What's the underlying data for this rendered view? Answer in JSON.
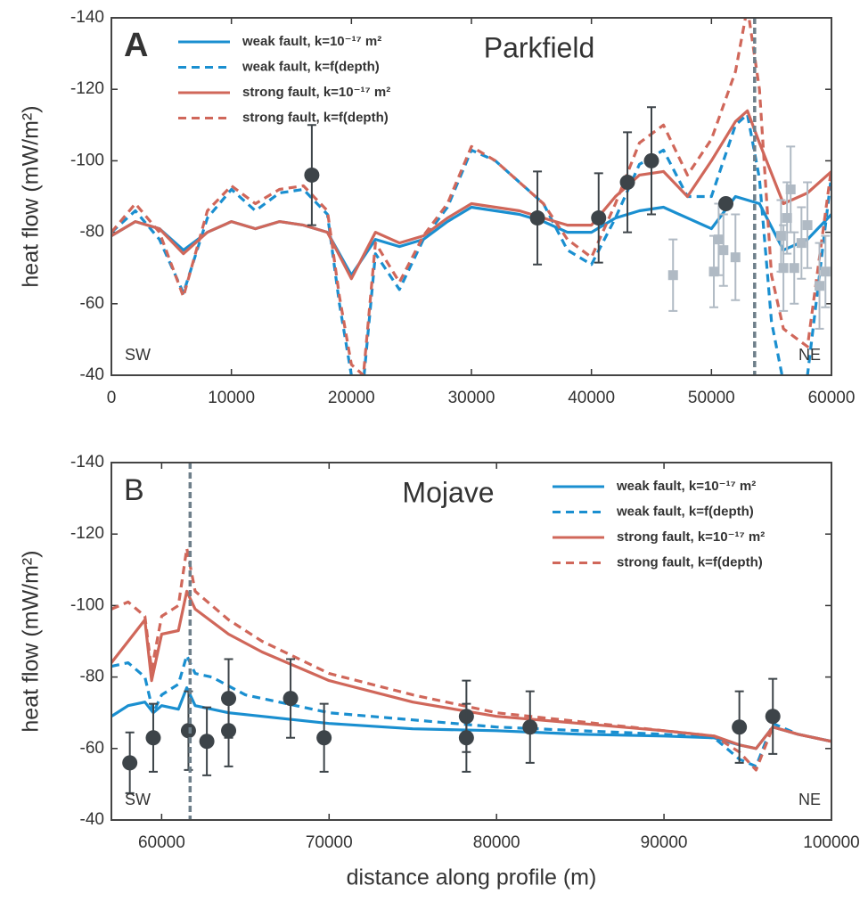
{
  "chart_data": [
    {
      "type": "line",
      "panel_label": "A",
      "title": "Parkfield",
      "ylabel": "heat flow (mW/m²)",
      "annotations": [
        "SW",
        "NE"
      ],
      "legend": "upper left",
      "fault_x": 53600,
      "fault_color": "#6e7f8a",
      "xlim": [
        0,
        60000
      ],
      "xticks": [
        0,
        10000,
        20000,
        30000,
        40000,
        50000,
        60000
      ],
      "ylim": [
        -40,
        -140
      ],
      "yticks": [
        -140,
        -120,
        -100,
        -80,
        -60,
        -40
      ],
      "series": [
        {
          "name": "weak fault, k=10⁻¹⁷ m²",
          "color": "#1a8fd0",
          "dashed": false,
          "x": [
            0,
            2000,
            4000,
            6000,
            8000,
            10000,
            12000,
            14000,
            16000,
            18000,
            20000,
            22000,
            24000,
            26000,
            28000,
            30000,
            32000,
            34000,
            36000,
            38000,
            40000,
            42000,
            44000,
            46000,
            48000,
            50000,
            52000,
            54000,
            56000,
            58000,
            60000
          ],
          "values": [
            -79,
            -83,
            -81,
            -75,
            -80,
            -83,
            -81,
            -83,
            -82,
            -80,
            -68,
            -78,
            -76,
            -78,
            -83,
            -87,
            -86,
            -85,
            -83,
            -80,
            -80,
            -84,
            -86,
            -87,
            -84,
            -81,
            -90,
            -88,
            -75,
            -78,
            -85
          ]
        },
        {
          "name": "weak fault, k=f(depth)",
          "color": "#1a8fd0",
          "dashed": true,
          "x": [
            0,
            2000,
            4000,
            6000,
            8000,
            10000,
            12000,
            14000,
            16000,
            18000,
            19000,
            20000,
            21000,
            22000,
            24000,
            26000,
            28000,
            30000,
            32000,
            34000,
            36000,
            38000,
            40000,
            42000,
            44000,
            46000,
            48000,
            50000,
            52000,
            53000,
            54000,
            55000,
            56000,
            58000,
            60000
          ],
          "values": [
            -80,
            -86,
            -78,
            -63,
            -84,
            -92,
            -86,
            -91,
            -92,
            -85,
            -60,
            -40,
            -38,
            -74,
            -64,
            -78,
            -87,
            -103,
            -100,
            -94,
            -88,
            -75,
            -71,
            -84,
            -99,
            -103,
            -90,
            -90,
            -110,
            -113,
            -95,
            -55,
            -38,
            -40,
            -96
          ]
        },
        {
          "name": "strong fault, k=10⁻¹⁷ m²",
          "color": "#d0675a",
          "dashed": false,
          "x": [
            0,
            2000,
            4000,
            6000,
            8000,
            10000,
            12000,
            14000,
            16000,
            18000,
            20000,
            22000,
            24000,
            26000,
            28000,
            30000,
            32000,
            34000,
            36000,
            38000,
            40000,
            42000,
            44000,
            46000,
            48000,
            50000,
            52000,
            53000,
            54000,
            56000,
            58000,
            60000
          ],
          "values": [
            -79,
            -83,
            -81,
            -74,
            -80,
            -83,
            -81,
            -83,
            -82,
            -80,
            -67,
            -80,
            -77,
            -79,
            -84,
            -88,
            -87,
            -86,
            -84,
            -82,
            -82,
            -90,
            -96,
            -97,
            -90,
            -100,
            -111,
            -114,
            -105,
            -88,
            -91,
            -97
          ]
        },
        {
          "name": "strong fault, k=f(depth)",
          "color": "#d0675a",
          "dashed": true,
          "x": [
            0,
            2000,
            4000,
            6000,
            8000,
            10000,
            12000,
            14000,
            16000,
            18000,
            19000,
            20000,
            21000,
            22000,
            24000,
            26000,
            28000,
            30000,
            32000,
            34000,
            36000,
            38000,
            40000,
            42000,
            44000,
            46000,
            48000,
            50000,
            52000,
            53000,
            54000,
            55000,
            56000,
            58000,
            60000
          ],
          "values": [
            -80,
            -88,
            -80,
            -62,
            -86,
            -93,
            -88,
            -92,
            -93,
            -86,
            -62,
            -43,
            -40,
            -77,
            -66,
            -79,
            -88,
            -104,
            -100,
            -94,
            -88,
            -78,
            -73,
            -88,
            -105,
            -110,
            -96,
            -106,
            -125,
            -143,
            -120,
            -68,
            -53,
            -48,
            -98
          ]
        },
        {
          "color": "#b0bac4",
          "marker": "square",
          "x": [
            46800,
            50200,
            50600,
            51000,
            52000,
            55800,
            56000,
            56300,
            56600,
            56900,
            57500,
            58000,
            59000,
            59500
          ],
          "values": [
            -68,
            -69,
            -78,
            -75,
            -73,
            -79,
            -70,
            -84,
            -92,
            -70,
            -77,
            -82,
            -65,
            -69
          ],
          "errors": [
            10,
            10,
            10,
            10,
            12,
            10,
            12,
            10,
            12,
            10,
            10,
            12,
            12,
            10
          ]
        },
        {
          "color": "#3d4449",
          "marker": "circle",
          "x": [
            16700,
            35500,
            40600,
            43000,
            45000,
            51200
          ],
          "values": [
            -96,
            -84,
            -84,
            -94,
            -100,
            -88
          ],
          "errors": [
            14,
            13,
            12.5,
            14,
            15,
            null
          ]
        }
      ]
    },
    {
      "type": "line",
      "panel_label": "B",
      "title": "Mojave",
      "ylabel": "heat flow (mW/m²)",
      "xlabel": "distance along profile (m)",
      "annotations": [
        "SW",
        "NE"
      ],
      "legend": "upper right",
      "fault_x": 61700,
      "fault_color": "#6e7f8a",
      "xlim": [
        57000,
        100000
      ],
      "xticks": [
        60000,
        70000,
        80000,
        90000,
        100000
      ],
      "ylim": [
        -40,
        -140
      ],
      "yticks": [
        -140,
        -120,
        -100,
        -80,
        -60,
        -40
      ],
      "series": [
        {
          "name": "weak fault, k=10⁻¹⁷ m²",
          "color": "#1a8fd0",
          "dashed": false,
          "x": [
            57000,
            58000,
            59000,
            59500,
            60000,
            61000,
            61500,
            62000,
            64000,
            66000,
            70000,
            75000,
            80000,
            85000,
            90000,
            93000,
            94500,
            95500,
            96500,
            98000,
            100000
          ],
          "values": [
            -69,
            -72,
            -73,
            -70,
            -72,
            -71,
            -77,
            -72,
            -70,
            -69,
            -67,
            -65.5,
            -65,
            -64,
            -63.5,
            -63,
            -61,
            -60,
            -66,
            -64,
            -62
          ]
        },
        {
          "name": "weak fault, k=f(depth)",
          "color": "#1a8fd0",
          "dashed": true,
          "x": [
            57000,
            58000,
            59000,
            59500,
            60000,
            61000,
            61500,
            62000,
            63000,
            65000,
            70000,
            75000,
            80000,
            85000,
            90000,
            93000,
            94500,
            95500,
            96500,
            98000,
            100000
          ],
          "values": [
            -83,
            -84,
            -80,
            -70,
            -75,
            -78,
            -86,
            -81,
            -80,
            -75,
            -70,
            -68,
            -66,
            -65,
            -64,
            -63,
            -57,
            -55,
            -67,
            -64,
            -62
          ]
        },
        {
          "name": "strong fault, k=10⁻¹⁷ m²",
          "color": "#d0675a",
          "dashed": false,
          "x": [
            57000,
            58000,
            59000,
            59400,
            60000,
            61000,
            61500,
            62000,
            64000,
            66000,
            70000,
            75000,
            80000,
            85000,
            90000,
            93000,
            94500,
            95500,
            96500,
            98000,
            100000
          ],
          "values": [
            -84,
            -90,
            -96,
            -79,
            -92,
            -93,
            -104,
            -99,
            -92,
            -87,
            -79,
            -73,
            -69,
            -67,
            -65,
            -63.5,
            -61,
            -60,
            -66,
            -64,
            -62
          ]
        },
        {
          "name": "strong fault, k=f(depth)",
          "color": "#d0675a",
          "dashed": true,
          "x": [
            57000,
            58000,
            59000,
            59400,
            60000,
            61000,
            61500,
            62000,
            64000,
            66000,
            70000,
            75000,
            80000,
            85000,
            90000,
            93000,
            94500,
            95500,
            96500,
            98000,
            100000
          ],
          "values": [
            -99,
            -101,
            -97,
            -82,
            -97,
            -100,
            -116,
            -104,
            -96,
            -90,
            -81,
            -75,
            -70,
            -67.5,
            -65,
            -63.5,
            -59,
            -54,
            -66,
            -64,
            -62
          ]
        },
        {
          "color": "#3d4449",
          "marker": "circle",
          "x": [
            58100,
            59500,
            61600,
            62700,
            64000,
            64000,
            67700,
            69700,
            78200,
            78200,
            82000,
            94500,
            96500
          ],
          "values": [
            -56,
            -63,
            -65,
            -62,
            -65,
            -74,
            -74,
            -63,
            -69,
            -63,
            -66,
            -66,
            -69
          ],
          "errors": [
            8.5,
            9.5,
            11,
            9.5,
            10,
            11,
            11,
            9.5,
            10,
            9.5,
            10,
            10,
            10.5
          ]
        }
      ]
    }
  ]
}
